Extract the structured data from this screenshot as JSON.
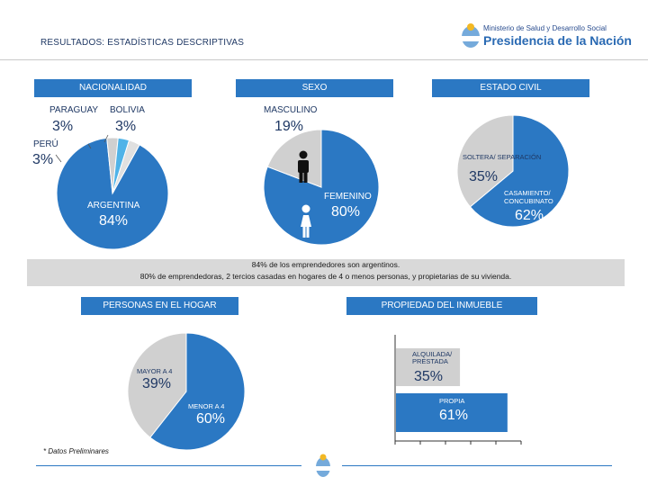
{
  "header": {
    "title": "RESULTADOS: ESTADÍSTICAS DESCRIPTIVAS",
    "ministry": "Ministerio de Salud y Desarrollo Social",
    "presidencia": "Presidencia de la Nación"
  },
  "banners": {
    "nacionalidad": "NACIONALIDAD",
    "sexo": "SEXO",
    "estado_civil": "ESTADO CIVIL",
    "personas_hogar": "PERSONAS EN EL HOGAR",
    "propiedad": "PROPIEDAD DEL INMUEBLE"
  },
  "note": {
    "line1": "84% de los emprendedores son argentinos.",
    "line2": "80% de emprendedoras, 2 tercios casadas en hogares de 4 o menos personas, y propietarias de su vivienda."
  },
  "footnote": "* Datos Preliminares",
  "colors": {
    "blue": "#2b78c3",
    "light_blue": "#4fb3e8",
    "gray": "#d0d0d0",
    "dark_text": "#1f3864"
  },
  "chart_data": [
    {
      "type": "pie",
      "title": "NACIONALIDAD",
      "slices": [
        {
          "label": "ARGENTINA",
          "value": 84,
          "display": "84%",
          "color": "#2b78c3"
        },
        {
          "label": "PERÚ",
          "value": 3,
          "display": "3%",
          "color": "#d0d0d0"
        },
        {
          "label": "PARAGUAY",
          "value": 3,
          "display": "3%",
          "color": "#4fb3e8"
        },
        {
          "label": "BOLIVIA",
          "value": 3,
          "display": "3%",
          "color": "#e0e0e0"
        }
      ]
    },
    {
      "type": "pie",
      "title": "SEXO",
      "slices": [
        {
          "label": "FEMENINO",
          "value": 80,
          "display": "80%",
          "color": "#2b78c3"
        },
        {
          "label": "MASCULINO",
          "value": 19,
          "display": "19%",
          "color": "#d0d0d0"
        }
      ]
    },
    {
      "type": "pie",
      "title": "ESTADO CIVIL",
      "slices": [
        {
          "label": "CASAMIENTO/ CONCUBINATO",
          "value": 62,
          "display": "62%",
          "color": "#2b78c3"
        },
        {
          "label": "SOLTERA/ SEPARACIÓN",
          "value": 35,
          "display": "35%",
          "color": "#d0d0d0"
        }
      ]
    },
    {
      "type": "pie",
      "title": "PERSONAS EN EL HOGAR",
      "slices": [
        {
          "label": "MENOR A 4",
          "value": 60,
          "display": "60%",
          "color": "#2b78c3"
        },
        {
          "label": "MAYOR A 4",
          "value": 39,
          "display": "39%",
          "color": "#d0d0d0"
        }
      ]
    },
    {
      "type": "bar",
      "title": "PROPIEDAD DEL INMUEBLE",
      "orientation": "horizontal",
      "categories": [
        "ALQUILADA/ PRESTADA",
        "PROPIA"
      ],
      "values": [
        35,
        61
      ],
      "display": [
        "35%",
        "61%"
      ],
      "colors": [
        "#d0d0d0",
        "#2b78c3"
      ],
      "xlim": [
        0,
        100
      ]
    }
  ]
}
